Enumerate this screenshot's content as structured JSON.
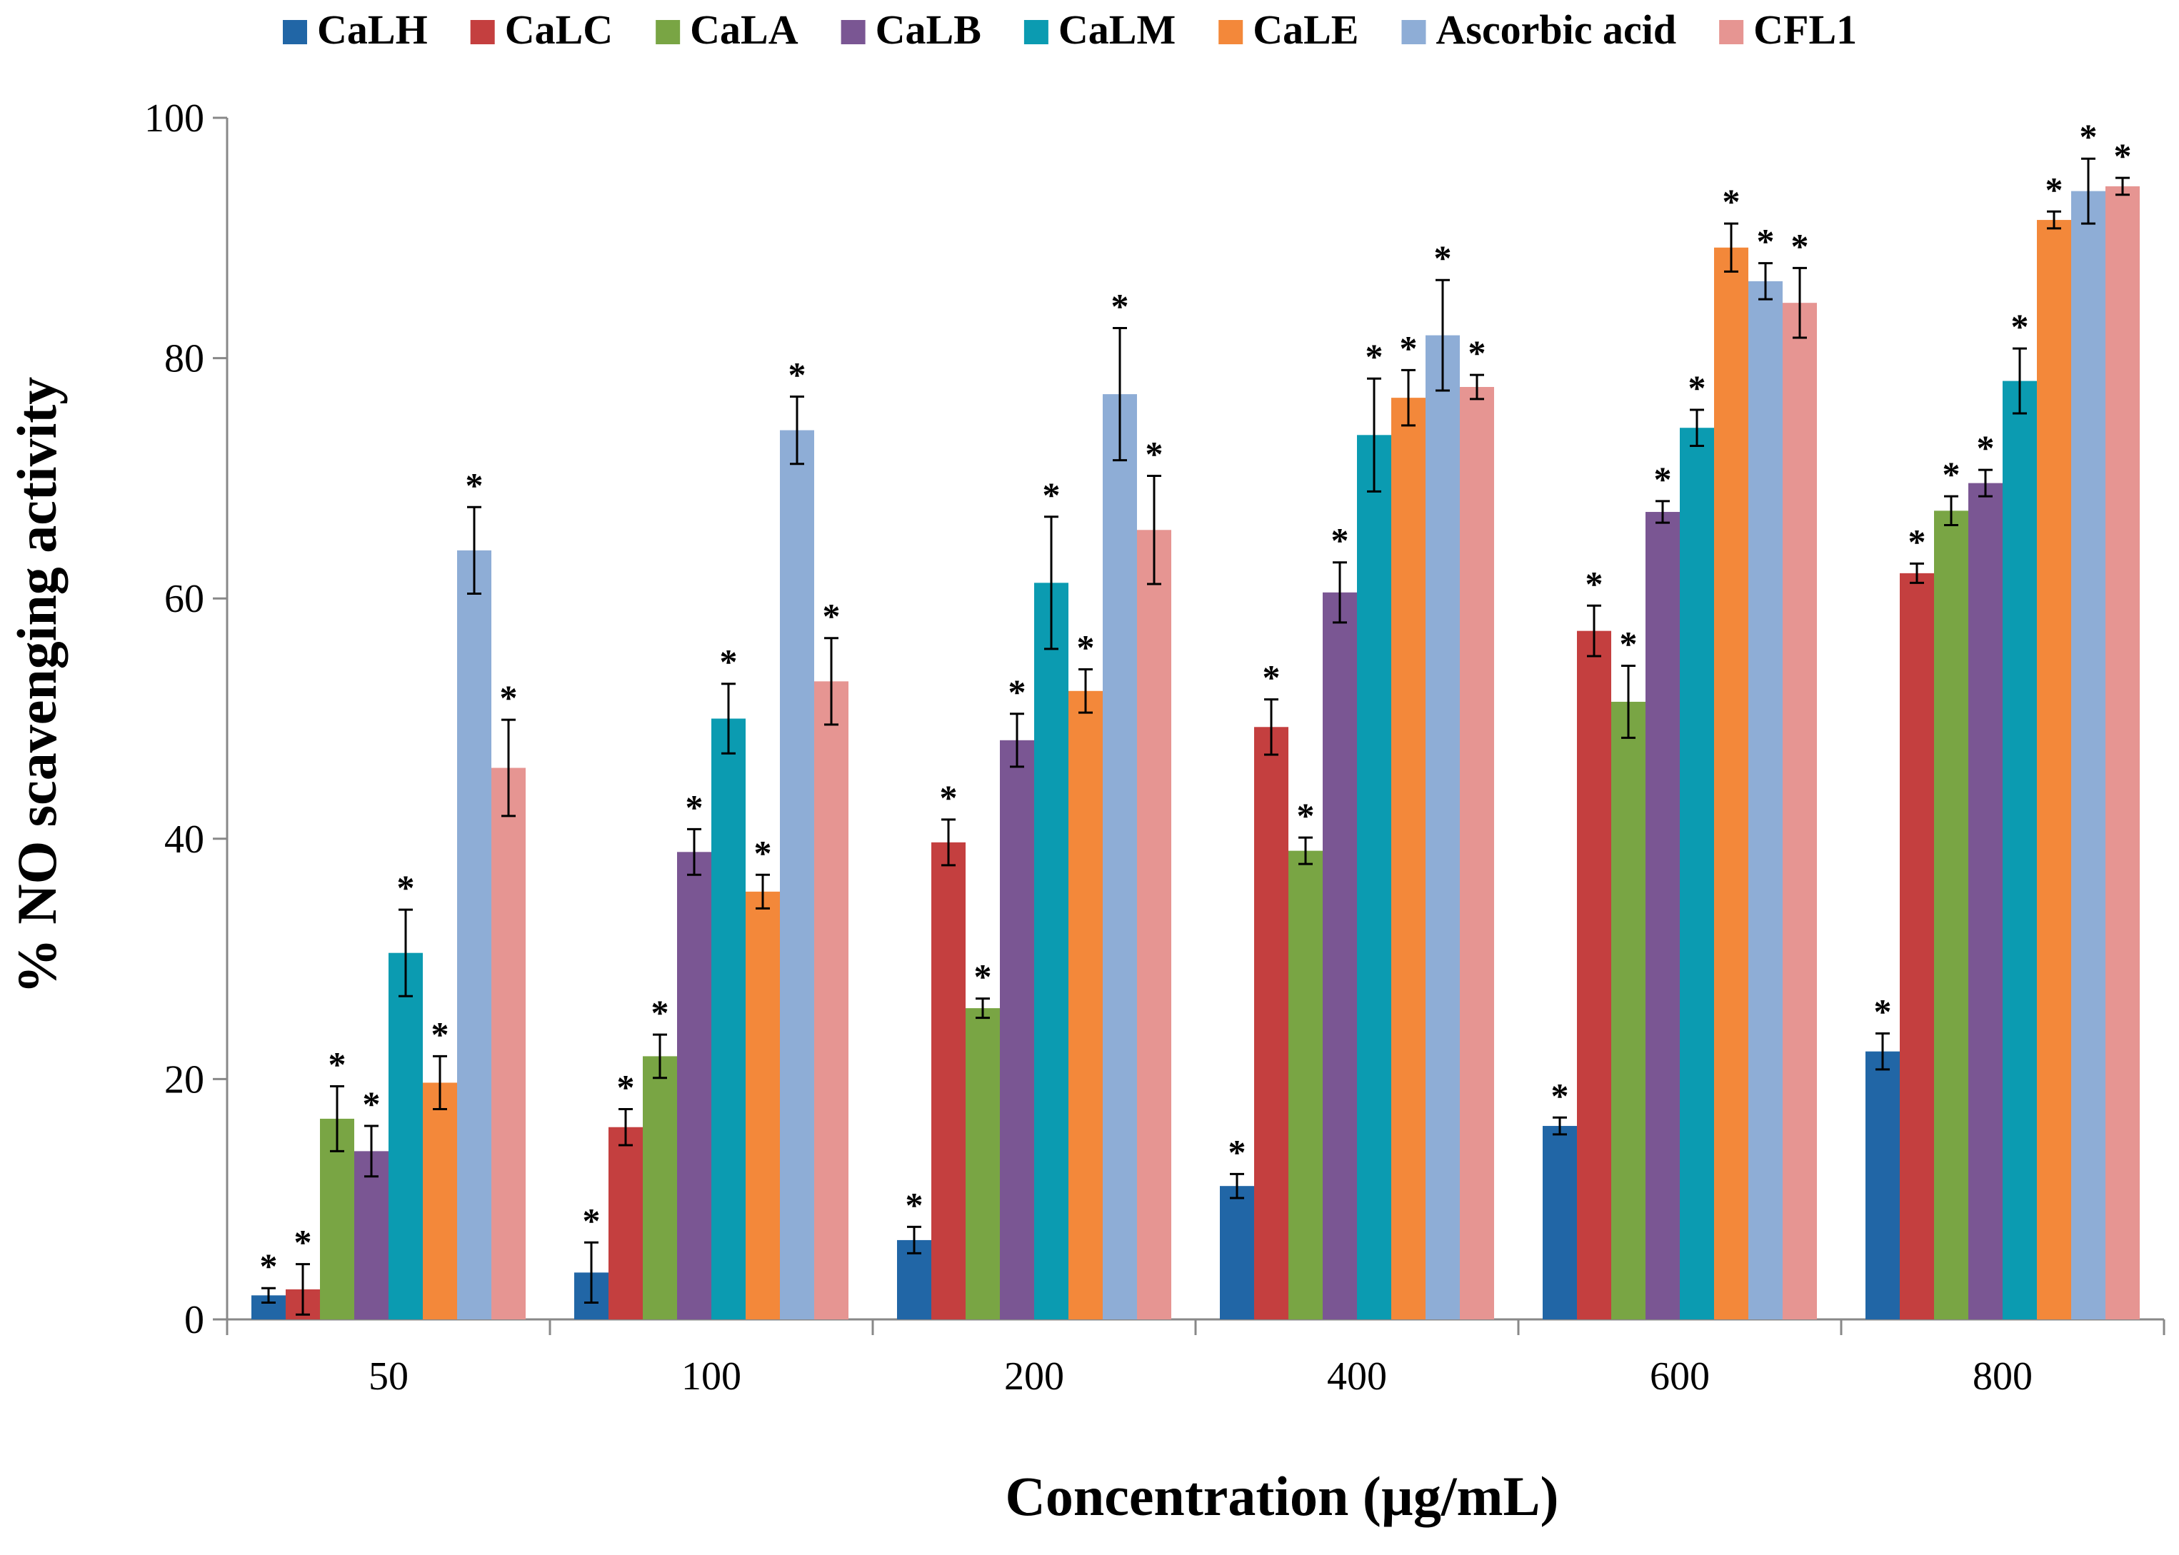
{
  "chart_data": {
    "type": "bar",
    "title": "",
    "xlabel": "Concentration (µg/mL)",
    "ylabel": "% NO scavenging activity",
    "ylim": [
      0,
      100
    ],
    "yticks": [
      0,
      20,
      40,
      60,
      80,
      100
    ],
    "categories": [
      "50",
      "100",
      "200",
      "400",
      "600",
      "800"
    ],
    "significance_marker": "*",
    "legend_position": "top",
    "series": [
      {
        "name": "CaLH",
        "color": "#2166a6",
        "values": [
          2.0,
          3.9,
          6.6,
          11.1,
          16.1,
          22.3
        ],
        "errors": [
          0.6,
          2.5,
          1.1,
          1.0,
          0.7,
          1.5
        ],
        "significant": [
          true,
          true,
          true,
          true,
          true,
          true
        ]
      },
      {
        "name": "CaLC",
        "color": "#c43f3f",
        "values": [
          2.5,
          16.0,
          39.7,
          49.3,
          57.3,
          62.1
        ],
        "errors": [
          2.1,
          1.5,
          1.9,
          2.3,
          2.1,
          0.8
        ],
        "significant": [
          true,
          true,
          true,
          true,
          true,
          true
        ]
      },
      {
        "name": "CaLA",
        "color": "#79a544",
        "values": [
          16.7,
          21.9,
          25.9,
          39.0,
          51.4,
          67.3
        ],
        "errors": [
          2.7,
          1.8,
          0.8,
          1.1,
          3.0,
          1.2
        ],
        "significant": [
          true,
          true,
          true,
          true,
          true,
          true
        ]
      },
      {
        "name": "CaLB",
        "color": "#7a5693",
        "values": [
          14.0,
          38.9,
          48.2,
          60.5,
          67.2,
          69.6
        ],
        "errors": [
          2.1,
          1.9,
          2.2,
          2.5,
          0.9,
          1.1
        ],
        "significant": [
          true,
          true,
          true,
          true,
          true,
          true
        ]
      },
      {
        "name": "CaLM",
        "color": "#0b9bb1",
        "values": [
          30.5,
          50.0,
          61.3,
          73.6,
          74.2,
          78.1
        ],
        "errors": [
          3.6,
          2.9,
          5.5,
          4.7,
          1.5,
          2.7
        ],
        "significant": [
          true,
          true,
          true,
          true,
          true,
          true
        ]
      },
      {
        "name": "CaLE",
        "color": "#f3883a",
        "values": [
          19.7,
          35.6,
          52.3,
          76.7,
          89.2,
          91.5
        ],
        "errors": [
          2.2,
          1.4,
          1.8,
          2.3,
          2.0,
          0.7
        ],
        "significant": [
          true,
          true,
          true,
          true,
          true,
          true
        ]
      },
      {
        "name": "Ascorbic acid",
        "color": "#8eadd6",
        "values": [
          64.0,
          74.0,
          77.0,
          81.9,
          86.4,
          93.9
        ],
        "errors": [
          3.6,
          2.8,
          5.5,
          4.6,
          1.5,
          2.7
        ],
        "significant": [
          true,
          true,
          true,
          true,
          true,
          true
        ]
      },
      {
        "name": "CFL1",
        "color": "#e69592",
        "values": [
          45.9,
          53.1,
          65.7,
          77.6,
          84.6,
          94.3
        ],
        "errors": [
          4.0,
          3.6,
          4.5,
          1.0,
          2.9,
          0.7
        ],
        "significant": [
          true,
          true,
          true,
          true,
          true,
          true
        ]
      }
    ]
  }
}
